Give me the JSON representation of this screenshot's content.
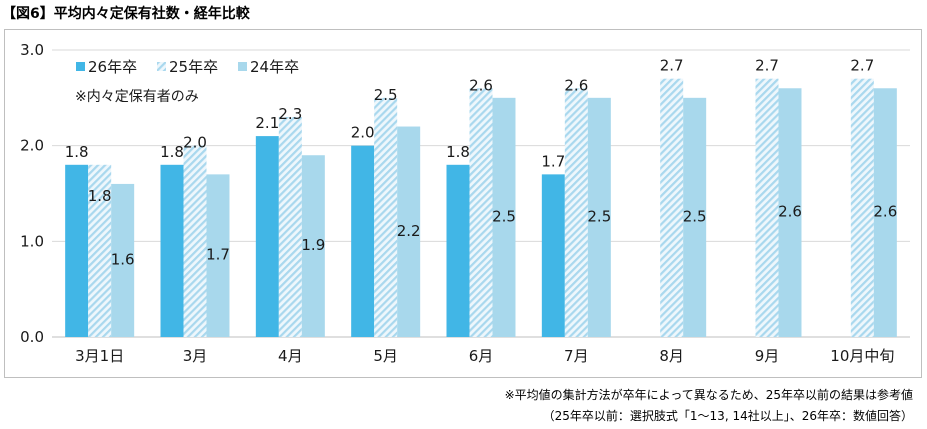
{
  "title": "【図6】平均内々定保有社数・経年比較",
  "notes": {
    "line1": "※平均値の集計方法が卒年によって異なるため、25年卒以前の結果は参考値",
    "line2": "（25年卒以前：選択肢式「1～13, 14社以上」、26年卒：数値回答）"
  },
  "chart_data": {
    "type": "bar",
    "categories": [
      "3月1日",
      "3月",
      "4月",
      "5月",
      "6月",
      "7月",
      "8月",
      "9月",
      "10月中旬"
    ],
    "ylim": [
      0,
      3
    ],
    "yticks": [
      "0.0",
      "1.0",
      "2.0",
      "3.0"
    ],
    "grid": true,
    "legend_position": "top-left",
    "annotation": "※内々定保有者のみ",
    "series": [
      {
        "name": "26年卒",
        "values": [
          1.8,
          1.8,
          2.1,
          2.0,
          1.8,
          1.7,
          null,
          null,
          null
        ],
        "color": "#41b6e6",
        "pattern": "solid"
      },
      {
        "name": "25年卒",
        "values": [
          1.8,
          2.0,
          2.3,
          2.5,
          2.6,
          2.6,
          2.7,
          2.7,
          2.7
        ],
        "color": "#a9d8ee",
        "pattern": "hatched"
      },
      {
        "name": "24年卒",
        "values": [
          1.6,
          1.7,
          1.9,
          2.2,
          2.5,
          2.5,
          2.5,
          2.6,
          2.6
        ],
        "color": "#a8d8ec",
        "pattern": "solid"
      }
    ],
    "data_labels": [
      [
        "1.8",
        "1.8",
        "2.1",
        "2.0",
        "1.8",
        "1.7",
        null,
        null,
        null
      ],
      [
        "1.8",
        "2.0",
        "2.3",
        "2.5",
        "2.6",
        "2.6",
        "2.7",
        "2.7",
        "2.7"
      ],
      [
        "1.6",
        "1.7",
        "1.9",
        "2.2",
        "2.5",
        "2.5",
        "2.5",
        "2.6",
        "2.6"
      ]
    ]
  }
}
